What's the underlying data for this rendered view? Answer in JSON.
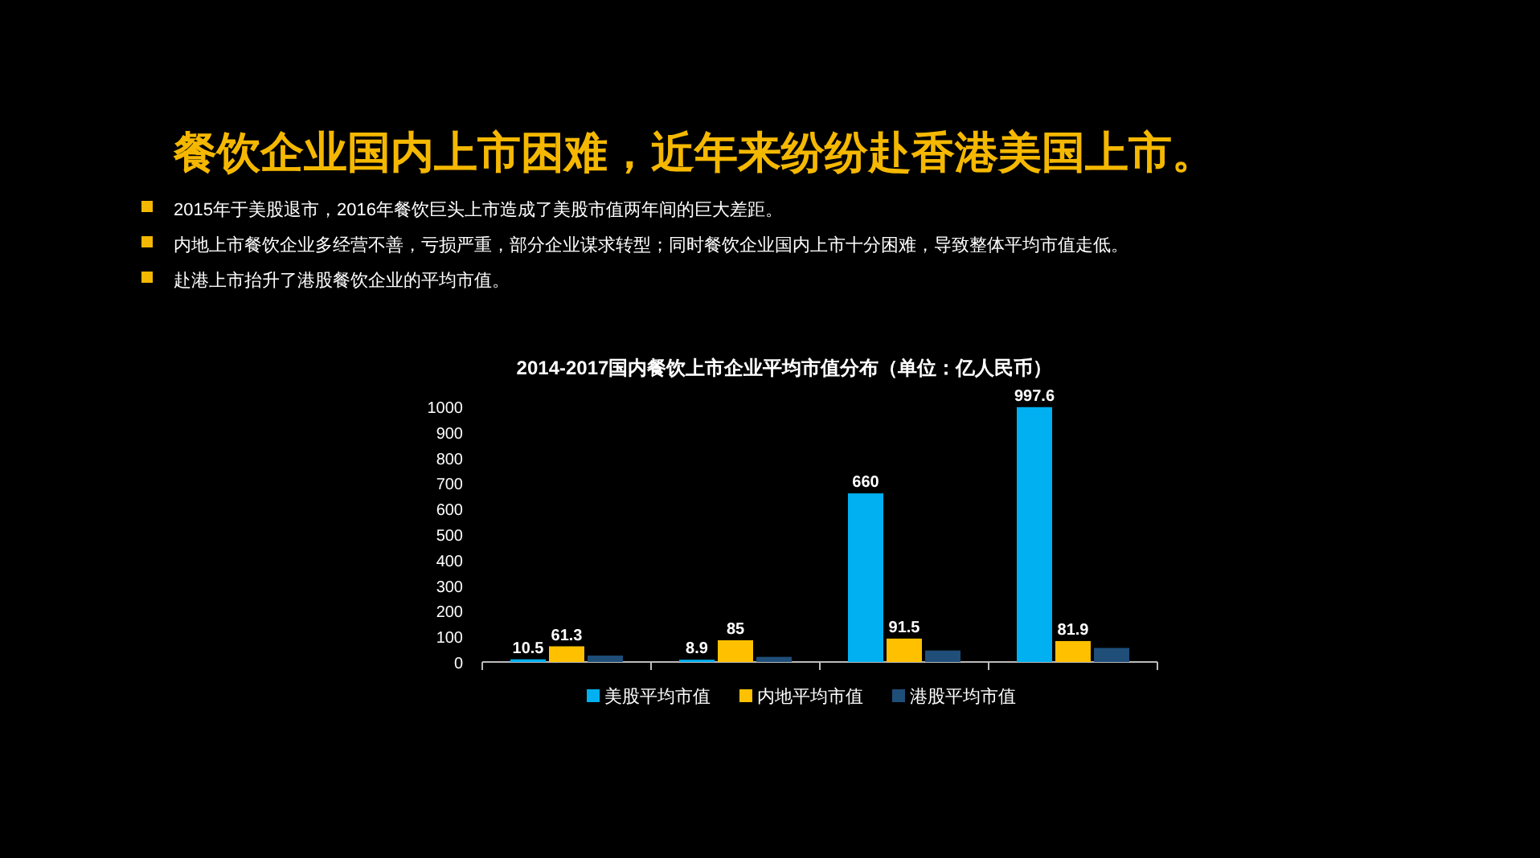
{
  "chart_data": {
    "type": "bar",
    "title": "餐饮企业国内上市困难，近年来纷纷赴香港美国上市。",
    "subtitle": "2014-2017国内餐饮上市企业平均市值分布（单位：亿人民币）",
    "annotations": [
      "2015年于美股退市，2016年餐饮巨头上市造成了美股市值两年间的巨大差距。",
      "内地上市餐饮企业多经营不善，亏损严重，部分企业谋求转型；同时餐饮企业国内上市十分困难，导致整体平均市值走低。",
      "赴港上市抬升了港股餐饮企业的平均市值。"
    ],
    "categories": [
      null,
      null,
      null,
      null
    ],
    "series": [
      {
        "name": "美股平均市值",
        "color": "#00b0f0",
        "values": [
          10.5,
          8.9,
          660,
          997.6
        ],
        "value_labels": [
          "10.5",
          "8.9",
          "660",
          "997.6"
        ]
      },
      {
        "name": "内地平均市值",
        "color": "#ffc000",
        "values": [
          61.3,
          85,
          91.5,
          81.9
        ],
        "value_labels": [
          "61.3",
          "85",
          "91.5",
          "81.9"
        ]
      },
      {
        "name": "港股平均市值",
        "color": "#1f4e79",
        "values": [
          25,
          20,
          45,
          55
        ]
      }
    ],
    "ylim": [
      0,
      1000
    ],
    "yticks": [
      0,
      100,
      200,
      300,
      400,
      500,
      600,
      700,
      800,
      900,
      1000
    ],
    "grid": false,
    "legend": "bottom"
  }
}
